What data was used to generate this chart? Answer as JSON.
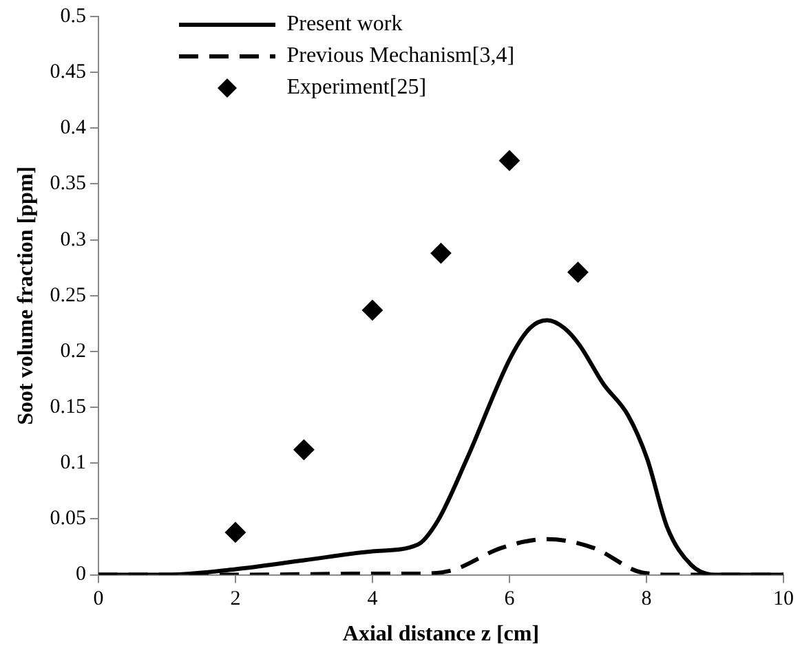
{
  "chart_data": {
    "type": "line",
    "xlabel": "Axial distance z [cm]",
    "ylabel": "Soot volume fraction [ppm]",
    "xlim": [
      0,
      10
    ],
    "xticks": [
      0,
      2,
      4,
      6,
      8,
      10
    ],
    "ylim": [
      0,
      0.5
    ],
    "yticks": [
      0,
      0.05,
      0.1,
      0.15,
      0.2,
      0.25,
      0.3,
      0.35,
      0.4,
      0.45,
      0.5
    ],
    "grid": false,
    "legend": "top",
    "series": [
      {
        "name": "Present work",
        "type": "line",
        "color": "#000000",
        "line_style": "solid",
        "marker": "none",
        "x": [
          0,
          1,
          2,
          3,
          4,
          4.66,
          4.95,
          5.38,
          6.02,
          6.3,
          6.55,
          6.8,
          7.02,
          7.37,
          7.73,
          8.01,
          8.3,
          8.65,
          9,
          10
        ],
        "values": [
          0,
          0,
          0.005,
          0.013,
          0.021,
          0.027,
          0.048,
          0.104,
          0.195,
          0.221,
          0.228,
          0.221,
          0.206,
          0.171,
          0.143,
          0.104,
          0.043,
          0.009,
          0,
          0
        ]
      },
      {
        "name": "Previous Mechanism[3,4]",
        "type": "line",
        "color": "#000000",
        "line_style": "dashed",
        "marker": "none",
        "x": [
          0,
          2,
          4,
          4.6,
          5.16,
          5.88,
          6.55,
          7.23,
          7.94,
          8.5,
          10
        ],
        "values": [
          0,
          0,
          0.001,
          0.001,
          0.004,
          0.024,
          0.032,
          0.024,
          0.002,
          0,
          0
        ]
      },
      {
        "name": "Experiment[25]",
        "type": "scatter",
        "color": "#000000",
        "marker": "diamond",
        "x": [
          2,
          3,
          4,
          5,
          6,
          7
        ],
        "values": [
          0.038,
          0.112,
          0.237,
          0.288,
          0.371,
          0.271
        ]
      }
    ]
  }
}
